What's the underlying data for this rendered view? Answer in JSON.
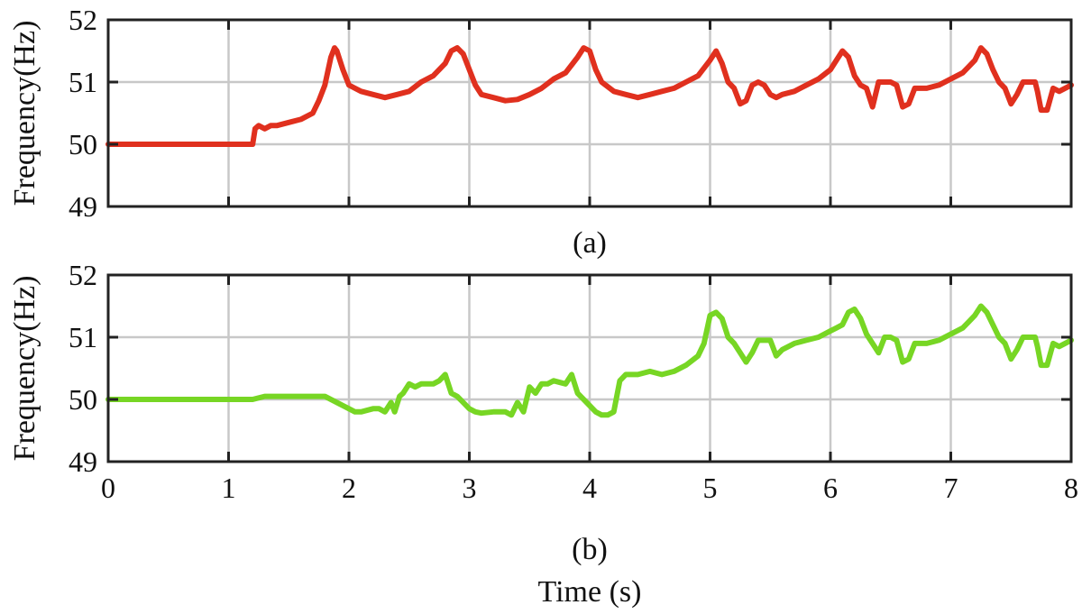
{
  "chart_data": [
    {
      "type": "line",
      "panel_caption": "(a)",
      "ylabel": "Frequency(Hz)",
      "xlabel": "",
      "xlim": [
        0,
        8
      ],
      "ylim": [
        49,
        52
      ],
      "xticks": [
        "0",
        "1",
        "2",
        "3",
        "4",
        "5",
        "6",
        "7",
        "8"
      ],
      "yticks": [
        "49",
        "50",
        "51",
        "52"
      ],
      "show_x_tick_labels": false,
      "grid": true,
      "color": "#e0301e",
      "series": [
        {
          "x": [
            0,
            0.5,
            1.0,
            1.2,
            1.22,
            1.25,
            1.3,
            1.35,
            1.4,
            1.5,
            1.6,
            1.7,
            1.75,
            1.8,
            1.85,
            1.88,
            1.9,
            1.95,
            2.0,
            2.05,
            2.1,
            2.2,
            2.3,
            2.4,
            2.5,
            2.6,
            2.7,
            2.8,
            2.85,
            2.9,
            2.95,
            3.0,
            3.05,
            3.1,
            3.2,
            3.3,
            3.4,
            3.5,
            3.6,
            3.7,
            3.8,
            3.9,
            3.95,
            4.0,
            4.05,
            4.1,
            4.2,
            4.3,
            4.4,
            4.5,
            4.6,
            4.7,
            4.8,
            4.9,
            5.0,
            5.05,
            5.1,
            5.15,
            5.2,
            5.25,
            5.3,
            5.35,
            5.4,
            5.45,
            5.5,
            5.55,
            5.6,
            5.7,
            5.8,
            5.9,
            6.0,
            6.05,
            6.1,
            6.15,
            6.2,
            6.25,
            6.3,
            6.35,
            6.4,
            6.45,
            6.5,
            6.55,
            6.6,
            6.65,
            6.7,
            6.8,
            6.9,
            7.0,
            7.1,
            7.15,
            7.2,
            7.25,
            7.3,
            7.35,
            7.4,
            7.45,
            7.5,
            7.55,
            7.6,
            7.7,
            7.72,
            7.75,
            7.8,
            7.85,
            7.9,
            8.0
          ],
          "y": [
            50.0,
            50.0,
            50.0,
            50.0,
            50.25,
            50.3,
            50.25,
            50.3,
            50.3,
            50.35,
            50.4,
            50.5,
            50.7,
            50.95,
            51.4,
            51.55,
            51.5,
            51.2,
            50.95,
            50.9,
            50.85,
            50.8,
            50.75,
            50.8,
            50.85,
            51.0,
            51.1,
            51.3,
            51.5,
            51.55,
            51.45,
            51.2,
            50.95,
            50.8,
            50.75,
            50.7,
            50.72,
            50.8,
            50.9,
            51.05,
            51.15,
            51.4,
            51.55,
            51.5,
            51.2,
            51.0,
            50.85,
            50.8,
            50.75,
            50.8,
            50.85,
            50.9,
            51.0,
            51.1,
            51.35,
            51.5,
            51.3,
            51.0,
            50.9,
            50.65,
            50.7,
            50.95,
            51.0,
            50.95,
            50.8,
            50.75,
            50.8,
            50.85,
            50.95,
            51.05,
            51.2,
            51.35,
            51.5,
            51.4,
            51.1,
            50.95,
            50.9,
            50.6,
            51.0,
            51.0,
            51.0,
            50.95,
            50.6,
            50.65,
            50.9,
            50.9,
            50.95,
            51.05,
            51.15,
            51.25,
            51.35,
            51.55,
            51.45,
            51.2,
            51.0,
            50.9,
            50.65,
            50.8,
            51.0,
            51.0,
            50.85,
            50.55,
            50.55,
            50.9,
            50.85,
            50.95
          ]
        }
      ]
    },
    {
      "type": "line",
      "panel_caption": "(b)",
      "ylabel": "Frequency(Hz)",
      "xlabel": "Time (s)",
      "xlim": [
        0,
        8
      ],
      "ylim": [
        49,
        52
      ],
      "xticks": [
        "0",
        "1",
        "2",
        "3",
        "4",
        "5",
        "6",
        "7",
        "8"
      ],
      "yticks": [
        "49",
        "50",
        "51",
        "52"
      ],
      "show_x_tick_labels": true,
      "grid": true,
      "color": "#77d624",
      "series": [
        {
          "x": [
            0,
            0.5,
            1.0,
            1.2,
            1.3,
            1.4,
            1.6,
            1.8,
            1.9,
            2.0,
            2.05,
            2.1,
            2.2,
            2.25,
            2.3,
            2.35,
            2.38,
            2.42,
            2.45,
            2.5,
            2.55,
            2.6,
            2.7,
            2.75,
            2.8,
            2.85,
            2.9,
            3.0,
            3.05,
            3.1,
            3.2,
            3.3,
            3.35,
            3.4,
            3.45,
            3.5,
            3.55,
            3.6,
            3.65,
            3.7,
            3.8,
            3.85,
            3.9,
            4.0,
            4.05,
            4.1,
            4.15,
            4.2,
            4.25,
            4.3,
            4.4,
            4.5,
            4.6,
            4.7,
            4.8,
            4.9,
            4.95,
            5.0,
            5.05,
            5.1,
            5.15,
            5.2,
            5.25,
            5.3,
            5.35,
            5.4,
            5.45,
            5.5,
            5.55,
            5.6,
            5.7,
            5.8,
            5.9,
            6.0,
            6.05,
            6.1,
            6.15,
            6.2,
            6.25,
            6.3,
            6.35,
            6.4,
            6.45,
            6.5,
            6.55,
            6.6,
            6.65,
            6.7,
            6.8,
            6.9,
            7.0,
            7.1,
            7.15,
            7.2,
            7.25,
            7.3,
            7.35,
            7.4,
            7.45,
            7.5,
            7.55,
            7.6,
            7.7,
            7.72,
            7.75,
            7.8,
            7.85,
            7.9,
            8.0
          ],
          "y": [
            50.0,
            50.0,
            50.0,
            50.0,
            50.05,
            50.05,
            50.05,
            50.05,
            49.95,
            49.85,
            49.8,
            49.8,
            49.85,
            49.85,
            49.8,
            49.95,
            49.8,
            50.05,
            50.1,
            50.25,
            50.2,
            50.25,
            50.25,
            50.3,
            50.4,
            50.1,
            50.05,
            49.85,
            49.8,
            49.78,
            49.8,
            49.8,
            49.75,
            49.95,
            49.8,
            50.2,
            50.1,
            50.25,
            50.25,
            50.3,
            50.25,
            50.4,
            50.1,
            49.9,
            49.8,
            49.75,
            49.75,
            49.8,
            50.3,
            50.4,
            50.4,
            50.45,
            50.4,
            50.45,
            50.55,
            50.7,
            50.9,
            51.35,
            51.4,
            51.3,
            51.0,
            50.9,
            50.75,
            50.6,
            50.75,
            50.95,
            50.95,
            50.95,
            50.7,
            50.8,
            50.9,
            50.95,
            51.0,
            51.1,
            51.15,
            51.2,
            51.4,
            51.45,
            51.3,
            51.05,
            50.9,
            50.75,
            51.0,
            51.0,
            50.95,
            50.6,
            50.65,
            50.9,
            50.9,
            50.95,
            51.05,
            51.15,
            51.25,
            51.35,
            51.5,
            51.4,
            51.2,
            51.0,
            50.9,
            50.65,
            50.8,
            51.0,
            51.0,
            50.85,
            50.55,
            50.55,
            50.9,
            50.85,
            50.95
          ]
        }
      ]
    }
  ]
}
